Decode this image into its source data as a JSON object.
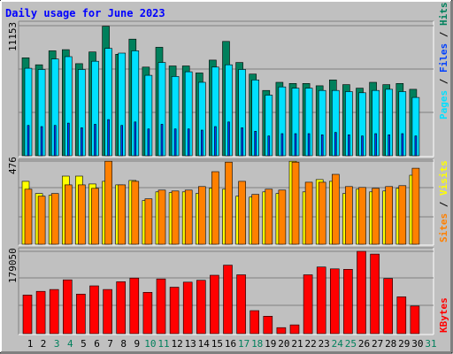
{
  "colors": {
    "background": "#C0C0C0",
    "title": "#0000FF",
    "hits": "#00805C",
    "files": "#0040FF",
    "pages": "#00E0FF",
    "visits": "#FFFF00",
    "sites": "#FF8000",
    "kbytes": "#FF0000",
    "weekend_day_label": "#00805C",
    "weekday_label": "#000000"
  },
  "chart_data": [
    {
      "type": "bar",
      "title": "Daily usage for June 2023",
      "panel": "hits-files-pages",
      "ylabel_parts": [
        "Pages",
        "Files",
        "Hits"
      ],
      "ylabel_separator": " / ",
      "y_max_label": "11153",
      "ylim": [
        0,
        11153
      ],
      "grid": true,
      "categories": [
        "1",
        "2",
        "3",
        "4",
        "5",
        "6",
        "7",
        "8",
        "9",
        "10",
        "11",
        "12",
        "13",
        "14",
        "15",
        "16",
        "17",
        "18",
        "19",
        "20",
        "21",
        "22",
        "23",
        "24",
        "25",
        "26",
        "27",
        "28",
        "29",
        "30",
        "31"
      ],
      "weekend_days": [
        3,
        4,
        10,
        11,
        17,
        18,
        24,
        25,
        31
      ],
      "series": [
        {
          "name": "Hits",
          "color_key": "hits",
          "values": [
            8400,
            7800,
            9000,
            9100,
            7900,
            8900,
            11100,
            8700,
            10000,
            7600,
            9300,
            7700,
            7700,
            7100,
            8200,
            9800,
            8000,
            7000,
            5600,
            6300,
            6200,
            6200,
            6000,
            6500,
            6100,
            5800,
            6300,
            6100,
            6200,
            5700,
            null
          ]
        },
        {
          "name": "Files",
          "color_key": "files",
          "values": [
            2600,
            2500,
            2600,
            2800,
            2400,
            2700,
            3100,
            2600,
            2900,
            2300,
            2700,
            2300,
            2300,
            2200,
            2500,
            2900,
            2400,
            2100,
            1700,
            1900,
            1900,
            1900,
            1800,
            2000,
            1800,
            1700,
            1900,
            1800,
            1900,
            1700,
            null
          ]
        },
        {
          "name": "Pages",
          "color_key": "pages",
          "values": [
            7500,
            7400,
            8300,
            8500,
            7400,
            8100,
            9200,
            8800,
            9000,
            6900,
            8000,
            6800,
            7200,
            6300,
            7600,
            7800,
            7400,
            6500,
            5200,
            5900,
            5800,
            5800,
            5600,
            5600,
            5500,
            5400,
            5600,
            5700,
            5500,
            5000,
            null
          ]
        }
      ]
    },
    {
      "type": "bar",
      "panel": "sites-visits",
      "ylabel_parts": [
        "Sites",
        "Visits"
      ],
      "ylabel_separator": " / ",
      "y_max_label": "476",
      "ylim": [
        0,
        476
      ],
      "grid": true,
      "series": [
        {
          "name": "Visits",
          "color_key": "visits",
          "values": [
            360,
            290,
            280,
            390,
            390,
            345,
            360,
            340,
            365,
            250,
            300,
            295,
            300,
            290,
            320,
            315,
            275,
            270,
            300,
            290,
            475,
            300,
            370,
            360,
            290,
            315,
            300,
            305,
            320,
            395,
            null
          ]
        },
        {
          "name": "Sites",
          "color_key": "sites",
          "values": [
            315,
            275,
            290,
            340,
            340,
            320,
            475,
            340,
            360,
            260,
            310,
            305,
            310,
            330,
            415,
            470,
            360,
            285,
            315,
            310,
            470,
            355,
            355,
            400,
            330,
            325,
            320,
            330,
            335,
            435,
            null
          ]
        }
      ]
    },
    {
      "type": "bar",
      "panel": "kbytes",
      "ylabel_parts": [
        "KBytes"
      ],
      "y_max_label": "179050",
      "ylim": [
        0,
        179050
      ],
      "grid": true,
      "series": [
        {
          "name": "KBytes",
          "color_key": "kbytes",
          "values": [
            84000,
            92000,
            96000,
            117000,
            86000,
            104000,
            96000,
            113000,
            121000,
            90000,
            119000,
            101000,
            112000,
            116000,
            127000,
            149000,
            128000,
            50000,
            38000,
            13000,
            19000,
            128000,
            145000,
            141000,
            140000,
            180000,
            173000,
            120000,
            80000,
            60000,
            null
          ]
        }
      ]
    }
  ]
}
